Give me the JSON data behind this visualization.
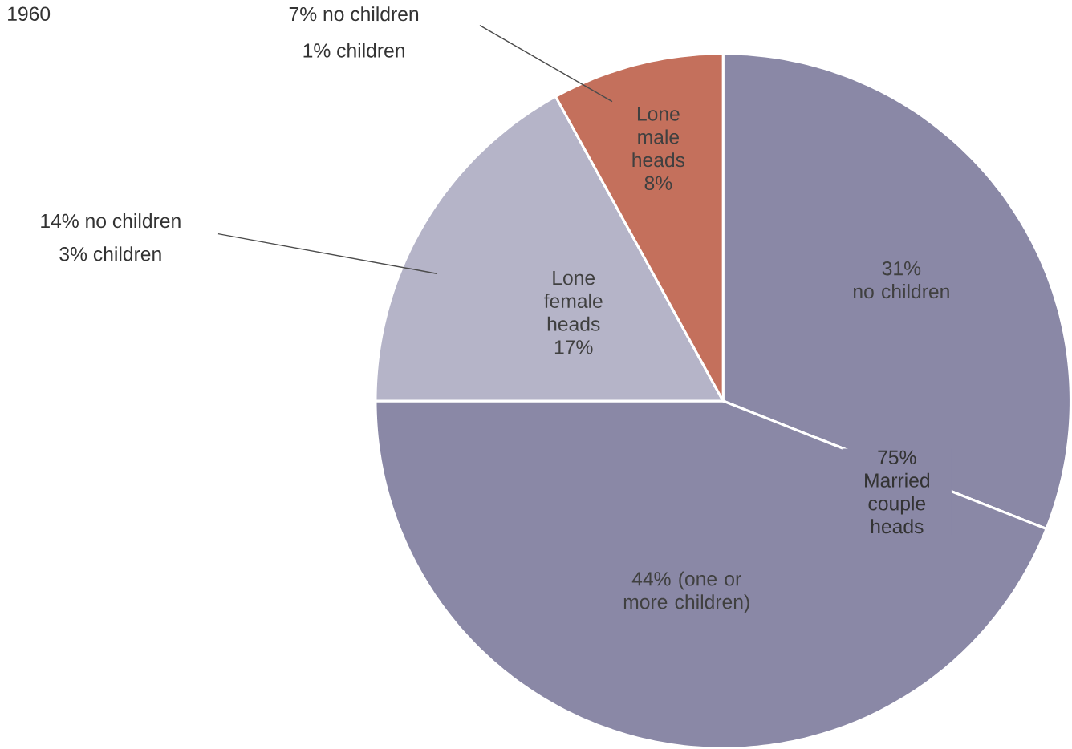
{
  "chart_data": {
    "type": "pie",
    "title": "1960",
    "categories": [
      "no children",
      "(one or more children)",
      "Lone female heads",
      "Lone male heads"
    ],
    "values": [
      31,
      44,
      17,
      8
    ],
    "value_labels": [
      "31%",
      "44%",
      "17%",
      "8%"
    ],
    "colors": [
      "#8a88a6",
      "#8a88a6",
      "#b5b4c8",
      "#c4705c"
    ],
    "annotations": [
      "7% no children",
      "1% children",
      "14% no children",
      "3% children",
      "75% Married couple heads"
    ]
  }
}
